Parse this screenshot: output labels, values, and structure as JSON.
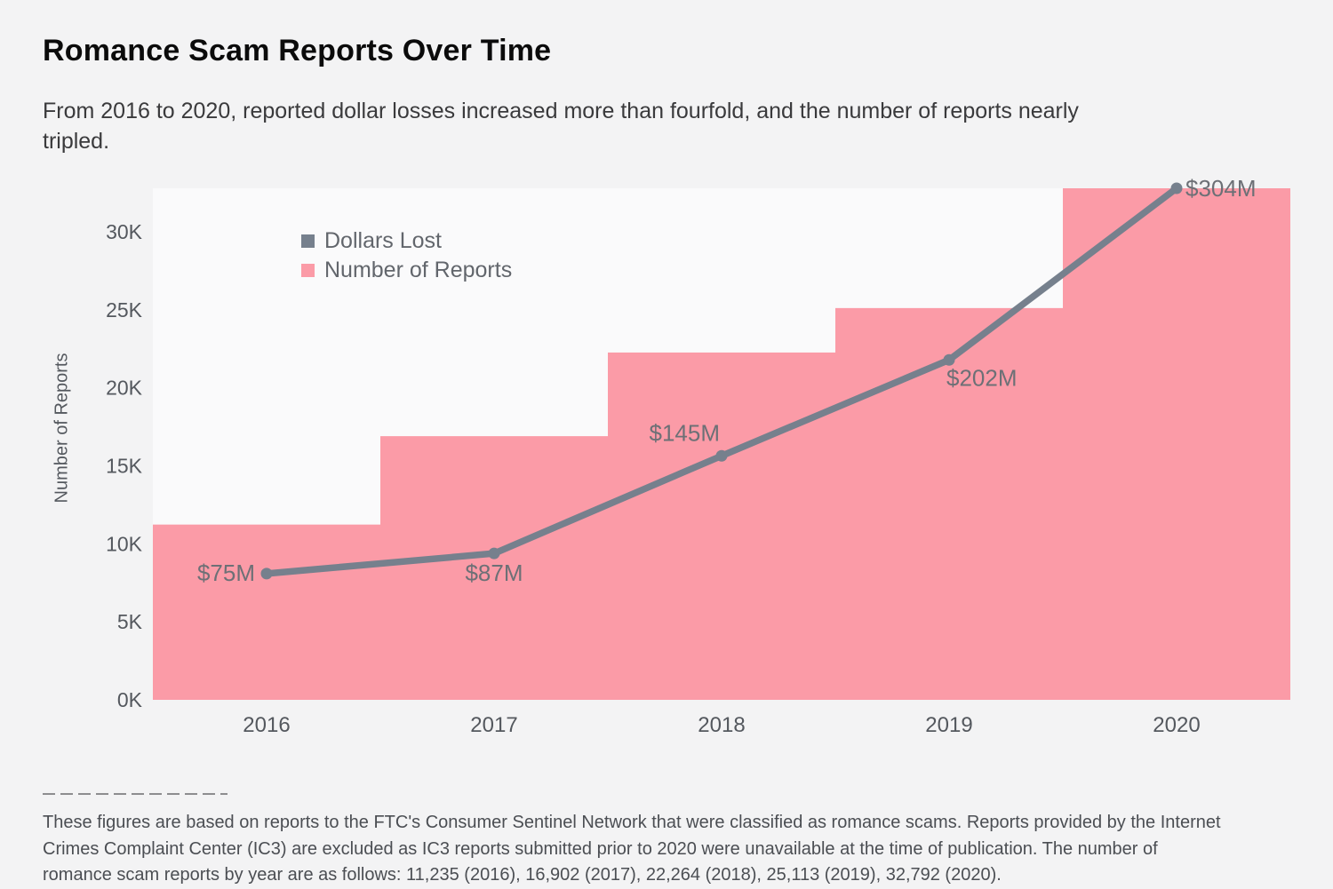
{
  "header": {
    "title": "Romance Scam Reports Over Time",
    "subtitle_lines": [
      "From 2016 to 2020, reported dollar losses increased more than fourfold, and the number of reports nearly",
      "tripled."
    ]
  },
  "chart_data": {
    "type": "combo (step-area bars + line)",
    "categories": [
      "2016",
      "2017",
      "2018",
      "2019",
      "2020"
    ],
    "series": [
      {
        "name": "Dollars Lost",
        "type": "line",
        "color": "#76808D",
        "unit": "USD millions",
        "values": [
          75,
          87,
          145,
          202,
          304
        ],
        "point_labels": [
          "$75M",
          "$87M",
          "$145M",
          "$202M",
          "$304M"
        ],
        "label_positions": [
          "left",
          "below",
          "above-left",
          "below-right",
          "right"
        ]
      },
      {
        "name": "Number of Reports",
        "type": "bar",
        "color": "#FB9BA7",
        "values": [
          11235,
          16902,
          22264,
          25113,
          32792
        ]
      }
    ],
    "ylabel": "Number of Reports",
    "ytick_labels": [
      "0K",
      "5K",
      "10K",
      "15K",
      "20K",
      "25K",
      "30K"
    ],
    "ytick_values": [
      0,
      5000,
      10000,
      15000,
      20000,
      25000,
      30000
    ],
    "primary_ylim": [
      0,
      32792
    ],
    "secondary_ylim": [
      0,
      304
    ],
    "grid": false,
    "legend_position": "inside-top-left"
  },
  "footnote": {
    "lines": [
      "These figures are based on reports to the FTC's Consumer Sentinel Network that were classified as romance scams. Reports provided by the Internet",
      "Crimes Complaint Center (IC3) are excluded as IC3 reports submitted prior to 2020 were unavailable at the time of publication. The number of",
      "romance scam reports by year are as follows: 11,235 (2016), 16,902 (2017), 22,264 (2018), 25,113 (2019), 32,792 (2020)."
    ]
  },
  "colors": {
    "page_bg": "#F3F3F4",
    "plot_bg": "#FAFAFB",
    "bar_pink": "#FB9BA7",
    "line_gray": "#76808D",
    "tick_text": "#54585E",
    "value_label_text": "#6D7076",
    "legend_text": "#62666C",
    "footnote_text": "#4B4E53"
  }
}
